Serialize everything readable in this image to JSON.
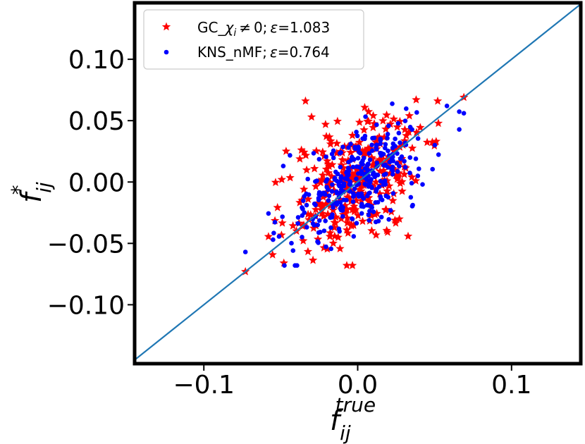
{
  "chart_data": {
    "type": "scatter",
    "title": "",
    "xlabel": {
      "base": "f",
      "sub": "ij",
      "sup": "true"
    },
    "ylabel": {
      "base": "f",
      "sub": "ij",
      "sup": "*"
    },
    "xlim": [
      -0.145,
      0.145
    ],
    "ylim": [
      -0.148,
      0.146
    ],
    "xticks": [
      -0.1,
      0.0,
      0.1
    ],
    "xtick_labels": [
      "−0.1",
      "0.0",
      "0.1"
    ],
    "yticks": [
      0.1,
      0.05,
      0.0,
      -0.05,
      -0.1
    ],
    "ytick_labels": [
      "0.10",
      "0.05",
      "0.00",
      "−0.05",
      "−0.10"
    ],
    "grid": false,
    "legend_position": "top-left",
    "reference_line": {
      "label": "y = x",
      "color": "#1f77b4"
    },
    "series": [
      {
        "name": "GC_χi ≠ 0; ε=1.083",
        "legend_parts": {
          "pre": "GC_",
          "chi": "χ",
          "sub": "i",
          "post": " ≠ 0; ",
          "eps": "ε",
          "val": "=1.083"
        },
        "marker": "star",
        "color": "#ff0000",
        "count": 320,
        "center": [
          0.0,
          0.0
        ],
        "spread": [
          0.022,
          0.028
        ],
        "correlation": 0.45,
        "extremes": [
          [
            -0.073,
            -0.073
          ],
          [
            0.069,
            0.069
          ],
          [
            0.052,
            0.066
          ],
          [
            -0.048,
            -0.066
          ],
          [
            0.038,
            0.067
          ],
          [
            -0.03,
            0.053
          ]
        ]
      },
      {
        "name": "KNS_nMF; ε=0.764",
        "legend_parts": {
          "pre": "KNS_nMF; ",
          "eps": "ε",
          "val": "=0.764"
        },
        "marker": "circle",
        "color": "#0000ff",
        "count": 320,
        "center": [
          0.0,
          0.0
        ],
        "spread": [
          0.021,
          0.024
        ],
        "correlation": 0.55,
        "extremes": [
          [
            -0.073,
            -0.057
          ],
          [
            0.069,
            0.056
          ],
          [
            0.058,
            0.062
          ],
          [
            -0.055,
            -0.047
          ]
        ]
      }
    ]
  }
}
